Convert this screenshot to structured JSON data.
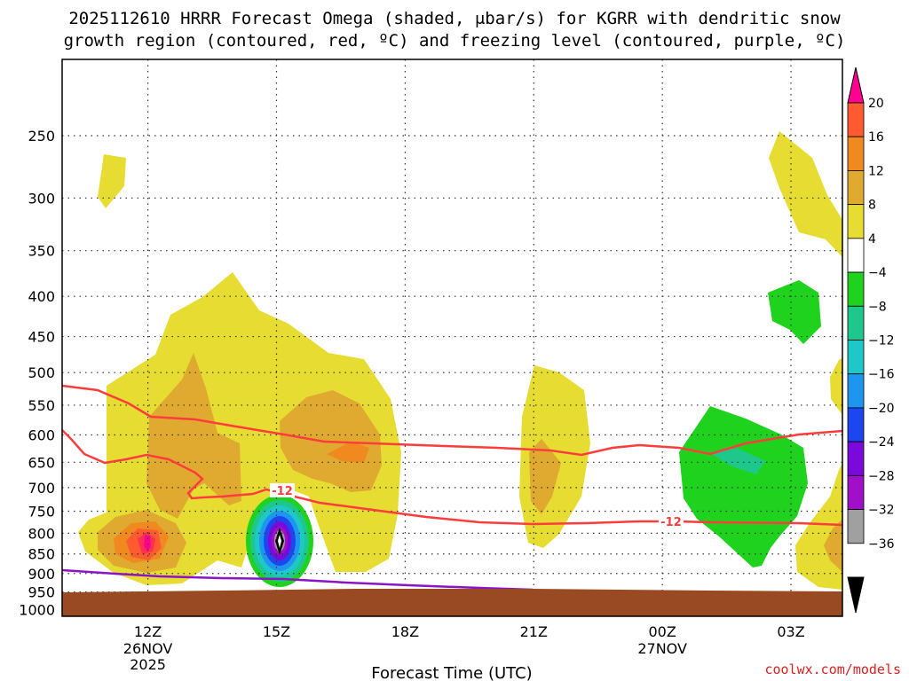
{
  "chart_data": {
    "type": "contour",
    "title_line1": "2025112610 HRRR Forecast Omega (shaded, μbar/s) for KGRR with dendritic snow",
    "title_line2": "growth region (contoured, red, ºC) and freezing level (contoured, purple, ºC)",
    "xlabel": "Forecast Time (UTC)",
    "credit": "coolwx.com/models",
    "x_ticks": [
      {
        "hour": 12,
        "label": "12Z",
        "sub": [
          "26NOV",
          "2025"
        ]
      },
      {
        "hour": 15,
        "label": "15Z",
        "sub": []
      },
      {
        "hour": 18,
        "label": "18Z",
        "sub": []
      },
      {
        "hour": 21,
        "label": "21Z",
        "sub": []
      },
      {
        "hour": 24,
        "label": "00Z",
        "sub": [
          "27NOV"
        ]
      },
      {
        "hour": 27,
        "label": "03Z",
        "sub": []
      }
    ],
    "x_range_hours": [
      10,
      28.2
    ],
    "y_ticks": [
      250,
      300,
      350,
      400,
      450,
      500,
      550,
      600,
      650,
      700,
      750,
      800,
      850,
      900,
      950,
      1000
    ],
    "y_range_hpa": [
      200,
      1020
    ],
    "colorbar": {
      "levels": [
        20,
        16,
        12,
        8,
        4,
        -4,
        -8,
        -12,
        -16,
        -20,
        -24,
        -28,
        -32,
        -36
      ],
      "colors": [
        "#ff3050",
        "#ff5a30",
        "#f08a20",
        "#e0aa30",
        "#e6dc32",
        "#ffffff",
        "#1ed21e",
        "#1ec88c",
        "#1ec8c8",
        "#1e96f0",
        "#1e46f0",
        "#7a0adc",
        "#a010c8",
        "#a0a0a0",
        "#000000"
      ],
      "top_arrow_color": "#ff0090",
      "bottom_arrow_color": "#000000"
    },
    "dgz_labels": [
      "-12",
      "-12"
    ],
    "colors": {
      "dgz": "#ff3c3c",
      "freezing": "#8c14c8",
      "ground": "#9a4a22"
    }
  }
}
